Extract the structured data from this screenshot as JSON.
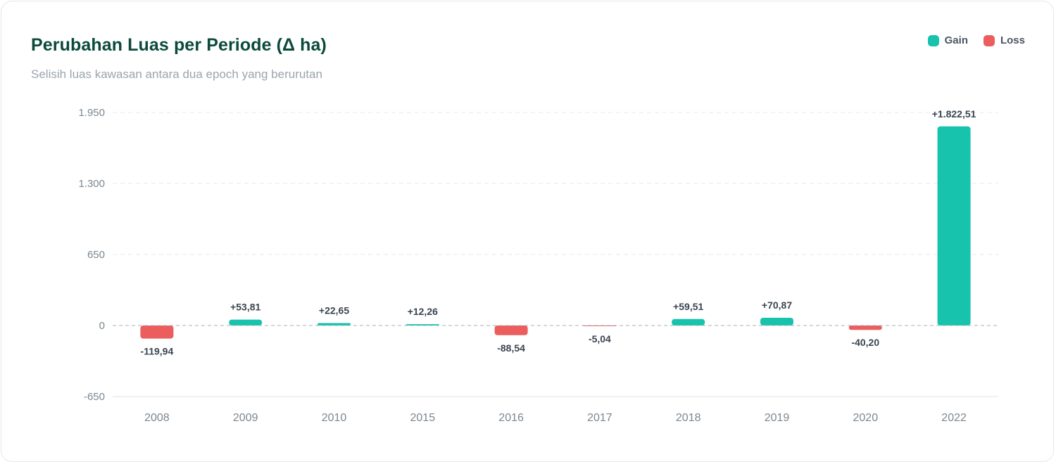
{
  "header": {
    "title": "Perubahan Luas per Periode (Δ ha)",
    "subtitle": "Selisih luas kawasan antara dua epoch yang berurutan"
  },
  "legend": {
    "gain_label": "Gain",
    "loss_label": "Loss"
  },
  "colors": {
    "gain": "#17c3ad",
    "loss": "#ec5d5d",
    "grid": "#e7eaee",
    "zero_line": "#aab2ba",
    "tick_text": "#7b8790",
    "value_text": "#3a4550"
  },
  "chart_data": {
    "type": "bar",
    "title": "Perubahan Luas per Periode (Δ ha)",
    "subtitle": "Selisih luas kawasan antara dua epoch yang berurutan",
    "categories": [
      "2008",
      "2009",
      "2010",
      "2015",
      "2016",
      "2017",
      "2018",
      "2019",
      "2020",
      "2022"
    ],
    "values": [
      -119.94,
      53.81,
      22.65,
      12.26,
      -88.54,
      -5.04,
      59.51,
      70.87,
      -40.2,
      1822.51
    ],
    "value_labels": [
      "-119,94",
      "+53,81",
      "+22,65",
      "+12,26",
      "-88,54",
      "-5,04",
      "+59,51",
      "+70,87",
      "-40,20",
      "+1.822,51"
    ],
    "yticks": [
      -650,
      0,
      650,
      1300,
      1950
    ],
    "ytick_labels": [
      "-650",
      "0",
      "650",
      "1.300",
      "1.950"
    ],
    "ylim": [
      -650,
      1950
    ],
    "grid": true,
    "legend_position": "top-right",
    "series": [
      {
        "name": "Gain"
      },
      {
        "name": "Loss"
      }
    ]
  }
}
